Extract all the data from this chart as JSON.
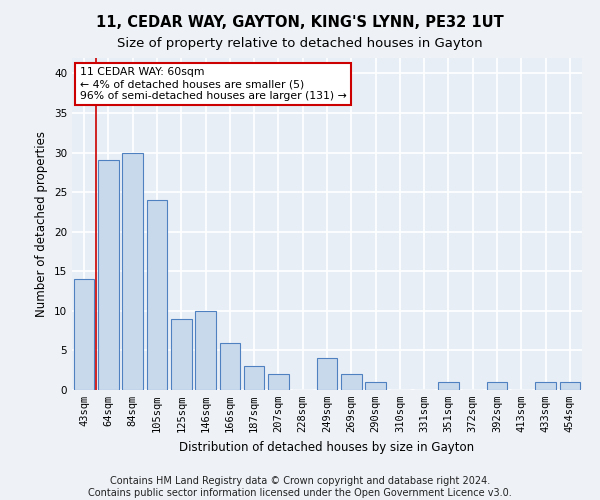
{
  "title1": "11, CEDAR WAY, GAYTON, KING'S LYNN, PE32 1UT",
  "title2": "Size of property relative to detached houses in Gayton",
  "xlabel": "Distribution of detached houses by size in Gayton",
  "ylabel": "Number of detached properties",
  "categories": [
    "43sqm",
    "64sqm",
    "84sqm",
    "105sqm",
    "125sqm",
    "146sqm",
    "166sqm",
    "187sqm",
    "207sqm",
    "228sqm",
    "249sqm",
    "269sqm",
    "290sqm",
    "310sqm",
    "331sqm",
    "351sqm",
    "372sqm",
    "392sqm",
    "413sqm",
    "433sqm",
    "454sqm"
  ],
  "values": [
    14,
    29,
    30,
    24,
    9,
    10,
    6,
    3,
    2,
    0,
    4,
    2,
    1,
    0,
    0,
    1,
    0,
    1,
    0,
    1,
    1
  ],
  "bar_color": "#c8d9ec",
  "bar_edge_color": "#4f81c0",
  "red_line_x": 0.5,
  "annotation_text": "11 CEDAR WAY: 60sqm\n← 4% of detached houses are smaller (5)\n96% of semi-detached houses are larger (131) →",
  "ylim_max": 42,
  "yticks": [
    0,
    5,
    10,
    15,
    20,
    25,
    30,
    35,
    40
  ],
  "footer1": "Contains HM Land Registry data © Crown copyright and database right 2024.",
  "footer2": "Contains public sector information licensed under the Open Government Licence v3.0.",
  "fig_bg": "#eef2f7",
  "plot_bg": "#e8eef6",
  "grid_color": "#ffffff",
  "title1_fontsize": 10.5,
  "title2_fontsize": 9.5,
  "label_fontsize": 8.5,
  "tick_fontsize": 7.5,
  "footer_fontsize": 7.0
}
